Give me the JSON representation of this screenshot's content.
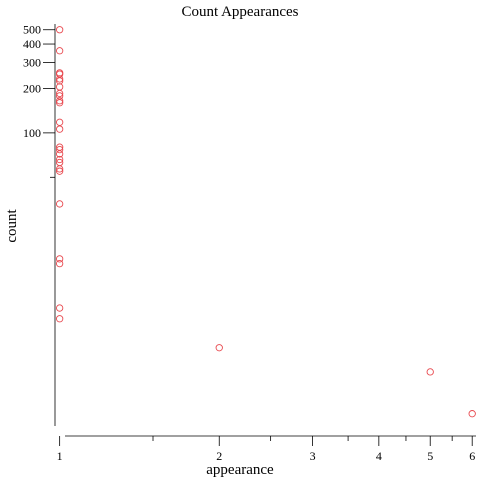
{
  "chart_data": {
    "type": "scatter",
    "title": "Count Appearances",
    "xlabel": "appearance",
    "ylabel": "count",
    "x_scale": "log",
    "y_scale": "log",
    "xlim": [
      0.98,
      6.1
    ],
    "ylim": [
      1.0,
      530
    ],
    "x_ticks_major": [
      1,
      2,
      3,
      4,
      5,
      6
    ],
    "x_ticks_minor": [
      1.5,
      2.5,
      3.5,
      4.5,
      5.5
    ],
    "y_ticks_major": [
      100,
      200,
      300,
      400,
      500
    ],
    "y_ticks_minor": [
      50
    ],
    "marker_color": "#e8484e",
    "grid": false,
    "points": [
      {
        "x": 1,
        "y": 500
      },
      {
        "x": 1,
        "y": 360
      },
      {
        "x": 1,
        "y": 255
      },
      {
        "x": 1,
        "y": 250
      },
      {
        "x": 1,
        "y": 232
      },
      {
        "x": 1,
        "y": 225
      },
      {
        "x": 1,
        "y": 205
      },
      {
        "x": 1,
        "y": 185
      },
      {
        "x": 1,
        "y": 178
      },
      {
        "x": 1,
        "y": 165
      },
      {
        "x": 1,
        "y": 160
      },
      {
        "x": 1,
        "y": 118
      },
      {
        "x": 1,
        "y": 106
      },
      {
        "x": 1,
        "y": 80
      },
      {
        "x": 1,
        "y": 77
      },
      {
        "x": 1,
        "y": 72
      },
      {
        "x": 1,
        "y": 66
      },
      {
        "x": 1,
        "y": 63
      },
      {
        "x": 1,
        "y": 57
      },
      {
        "x": 1,
        "y": 55
      },
      {
        "x": 1,
        "y": 33
      },
      {
        "x": 1,
        "y": 14
      },
      {
        "x": 1,
        "y": 13
      },
      {
        "x": 1,
        "y": 6.5
      },
      {
        "x": 1,
        "y": 5.5
      },
      {
        "x": 2,
        "y": 3.5
      },
      {
        "x": 5,
        "y": 2.4
      },
      {
        "x": 6,
        "y": 1.25
      }
    ]
  }
}
